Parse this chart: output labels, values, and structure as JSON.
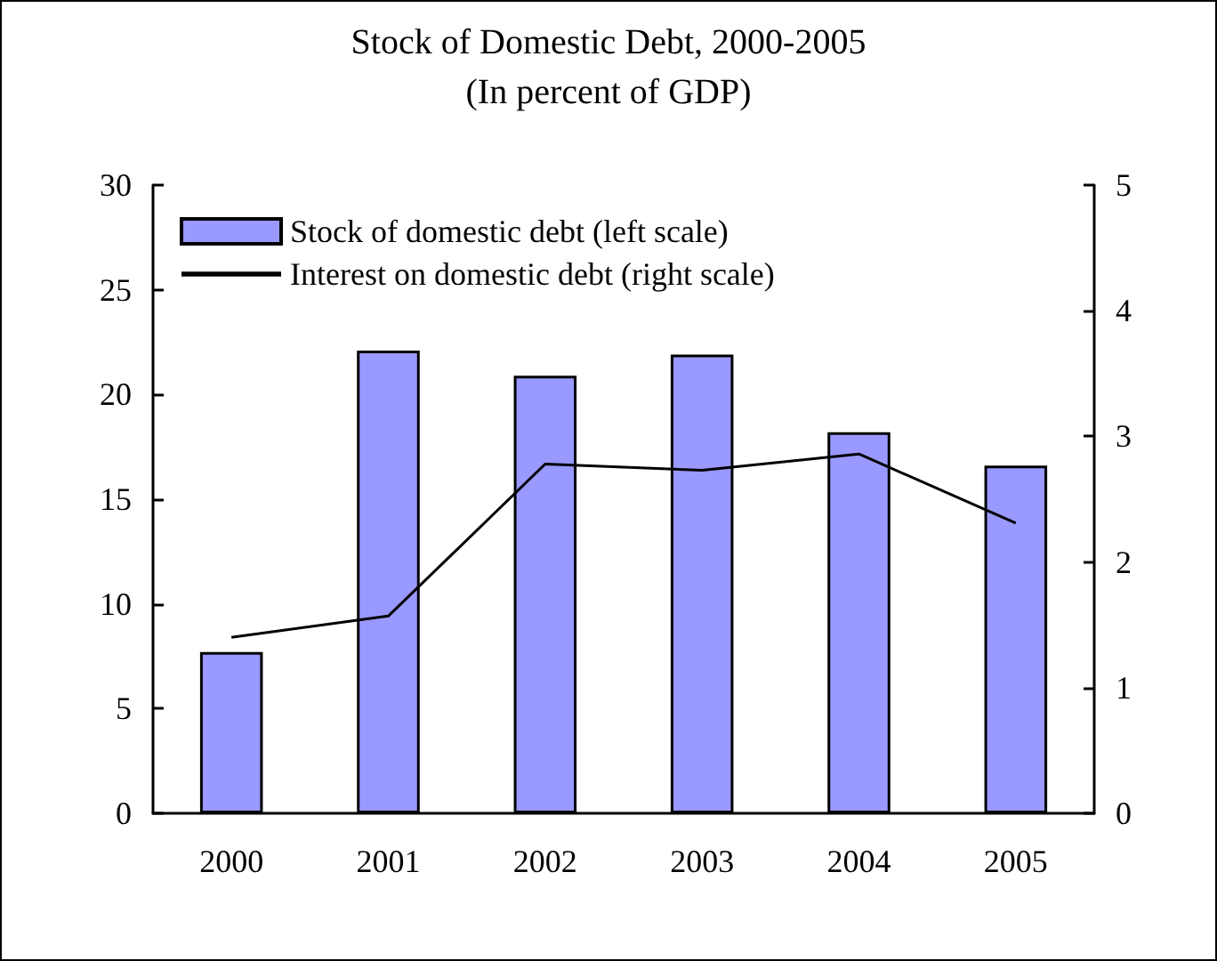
{
  "chart_data": {
    "type": "bar",
    "title": "Stock of Domestic Debt, 2000-2005",
    "subtitle": "(In percent of GDP)",
    "categories": [
      "2000",
      "2001",
      "2002",
      "2003",
      "2004",
      "2005"
    ],
    "series": [
      {
        "name": "Stock of domestic debt (left scale)",
        "color": "#9999ff",
        "values": [
          7.7,
          22.1,
          20.9,
          21.9,
          18.2,
          16.6
        ]
      },
      {
        "name": "Interest on domestic debt (right scale)",
        "type": "line",
        "axis": "y2",
        "color": "#000000",
        "values": [
          1.4,
          1.57,
          2.78,
          2.73,
          2.86,
          2.31
        ]
      }
    ],
    "ylim": [
      0,
      30
    ],
    "yticks": [
      0,
      5,
      10,
      15,
      20,
      25,
      30
    ],
    "y2lim": [
      0,
      5
    ],
    "y2ticks": [
      0,
      1,
      2,
      3,
      4,
      5
    ],
    "grid": false,
    "legend": "top left",
    "marker": "none",
    "line_style": "solid"
  }
}
